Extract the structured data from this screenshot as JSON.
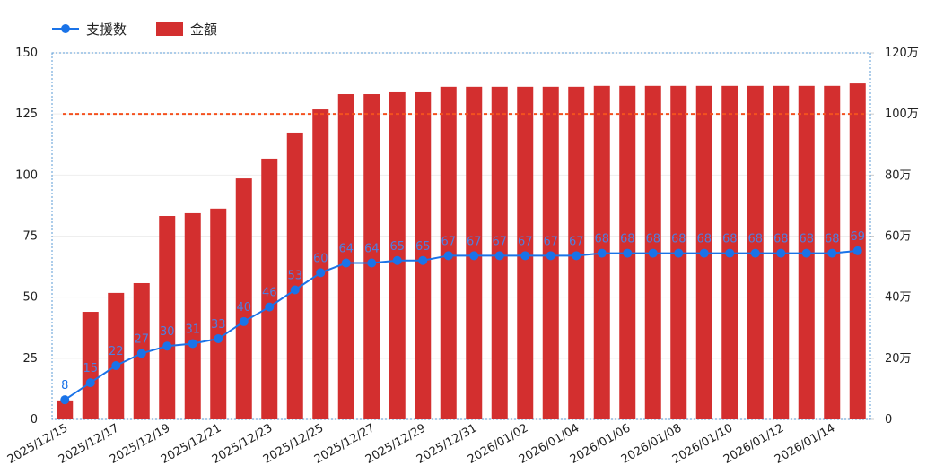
{
  "chart_data": {
    "type": "combo",
    "categories": [
      "2025/12/15",
      null,
      "2025/12/17",
      null,
      "2025/12/19",
      null,
      "2025/12/21",
      null,
      "2025/12/23",
      null,
      "2025/12/25",
      null,
      "2025/12/27",
      null,
      "2025/12/29",
      null,
      "2025/12/31",
      null,
      "2026/01/02",
      null,
      "2026/01/04",
      null,
      "2026/01/06",
      null,
      "2026/01/08",
      null,
      "2026/01/10",
      null,
      "2026/01/12",
      null,
      "2026/01/14",
      null
    ],
    "series": [
      {
        "name": "支援数",
        "kind": "line",
        "color": "#1a73e8",
        "axis": "y",
        "values": [
          8,
          15,
          22,
          27,
          30,
          31,
          33,
          40,
          46,
          53,
          60,
          64,
          64,
          65,
          65,
          67,
          67,
          67,
          67,
          67,
          67,
          68,
          68,
          68,
          68,
          68,
          68,
          68,
          68,
          68,
          68,
          69
        ]
      },
      {
        "name": "金額",
        "kind": "bar",
        "color": "#d32f2f",
        "axis": "y2",
        "values": [
          6.2,
          35.2,
          41.4,
          44.6,
          66.6,
          67.5,
          69,
          78.9,
          85.4,
          93.9,
          101.5,
          106.5,
          106.5,
          107.1,
          107.1,
          108.9,
          108.9,
          108.9,
          108.9,
          108.9,
          108.9,
          109.2,
          109.2,
          109.2,
          109.2,
          109.2,
          109.2,
          109.2,
          109.2,
          109.2,
          109.2,
          110
        ]
      }
    ],
    "reference_line": {
      "value": 100,
      "axis": "y2",
      "color": "#f4511e"
    },
    "ylim": [
      0,
      150
    ],
    "yticks": [
      0,
      25,
      50,
      75,
      100,
      125,
      150
    ],
    "y2lim": [
      0,
      120
    ],
    "y2ticks": [
      0,
      {
        "value": 20,
        "label": "20万"
      },
      {
        "value": 40,
        "label": "40万"
      },
      {
        "value": 60,
        "label": "60万"
      },
      {
        "value": 80,
        "label": "80万"
      },
      {
        "value": 100,
        "label": "100万"
      },
      {
        "value": 120,
        "label": "120万"
      }
    ],
    "grid": true,
    "legend": "top-left"
  }
}
